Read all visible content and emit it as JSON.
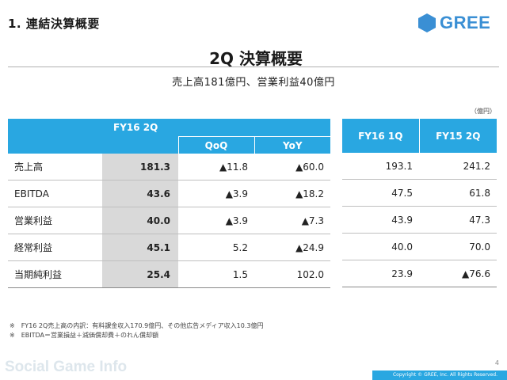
{
  "header": {
    "section_title": "1. 連結決算概要",
    "logo_text": "GREE",
    "slide_title": "2Q 決算概要",
    "subtitle": "売上高181億円、営業利益40億円",
    "unit": "（億円）"
  },
  "main_table": {
    "period": "FY16 2Q",
    "sub_headers": [
      "QoQ",
      "YoY"
    ],
    "rows": [
      {
        "label": "売上高",
        "value": "181.3",
        "qoq": "▲11.8",
        "yoy": "▲60.0"
      },
      {
        "label": "EBITDA",
        "value": "43.6",
        "qoq": "▲3.9",
        "yoy": "▲18.2"
      },
      {
        "label": "営業利益",
        "value": "40.0",
        "qoq": "▲3.9",
        "yoy": "▲7.3"
      },
      {
        "label": "経常利益",
        "value": "45.1",
        "qoq": "5.2",
        "yoy": "▲24.9"
      },
      {
        "label": "当期純利益",
        "value": "25.4",
        "qoq": "1.5",
        "yoy": "102.0"
      }
    ]
  },
  "side_table": {
    "headers": [
      "FY16 1Q",
      "FY15 2Q"
    ],
    "rows": [
      [
        "193.1",
        "241.2"
      ],
      [
        "47.5",
        "61.8"
      ],
      [
        "43.9",
        "47.3"
      ],
      [
        "40.0",
        "70.0"
      ],
      [
        "23.9",
        "▲76.6"
      ]
    ]
  },
  "notes": [
    "※　FY16 2Q売上高の内訳：有料課金収入170.9億円、その他広告メディア収入10.3億円",
    "※　EBITDA＝営業損益＋減価償却費＋のれん償却額"
  ],
  "footer": {
    "page_number": "4",
    "copyright": "Copyright © GREE, Inc. All Rights Reserved.",
    "watermark": "Social Game Info"
  },
  "colors": {
    "accent": "#29a7e1",
    "highlight_cell": "#d9d9d9"
  },
  "icons": {
    "logo": "gree-hexagon-icon"
  }
}
